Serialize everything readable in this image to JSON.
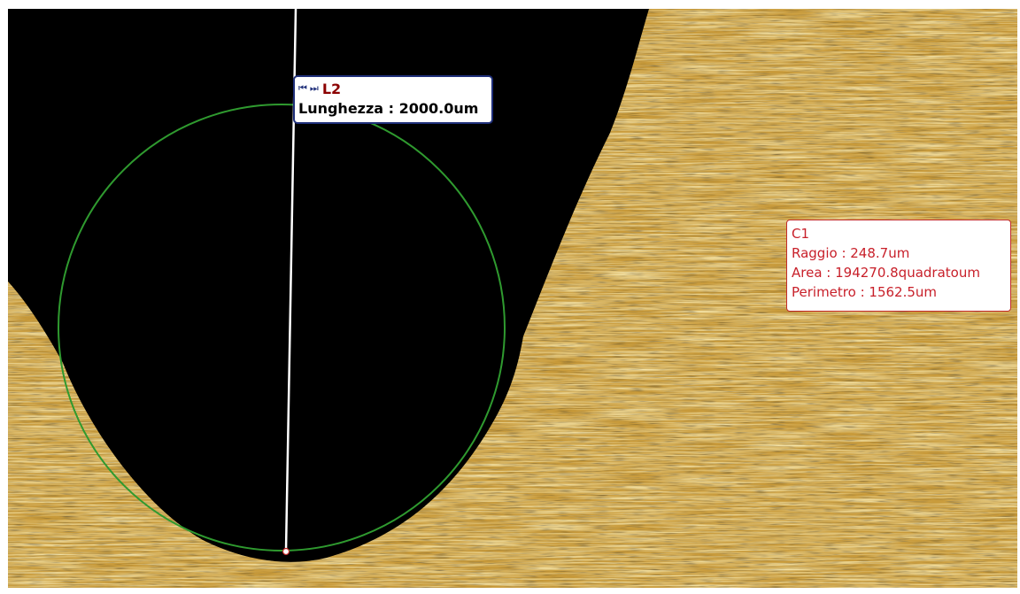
{
  "measurements": {
    "line": {
      "nav_prev_icon": "first-icon",
      "nav_next_icon": "last-icon",
      "name": "L2",
      "length_text": "Lunghezza : 2000.0um",
      "color": "#ffffff",
      "label_border_color": "#1f2f7a",
      "name_color": "#8b0000"
    },
    "circle": {
      "name": "C1",
      "radius_text": "Raggio : 248.7um",
      "area_text": "Area : 194270.8quadratoum",
      "perimeter_text": "Perimetro : 1562.5um",
      "color": "#2f9a2f",
      "label_text_color": "#c8202a"
    }
  },
  "image": {
    "background_color": "#000000",
    "metal_base_color": "#c89a3a",
    "metal_highlight_color": "#fff2b0"
  }
}
